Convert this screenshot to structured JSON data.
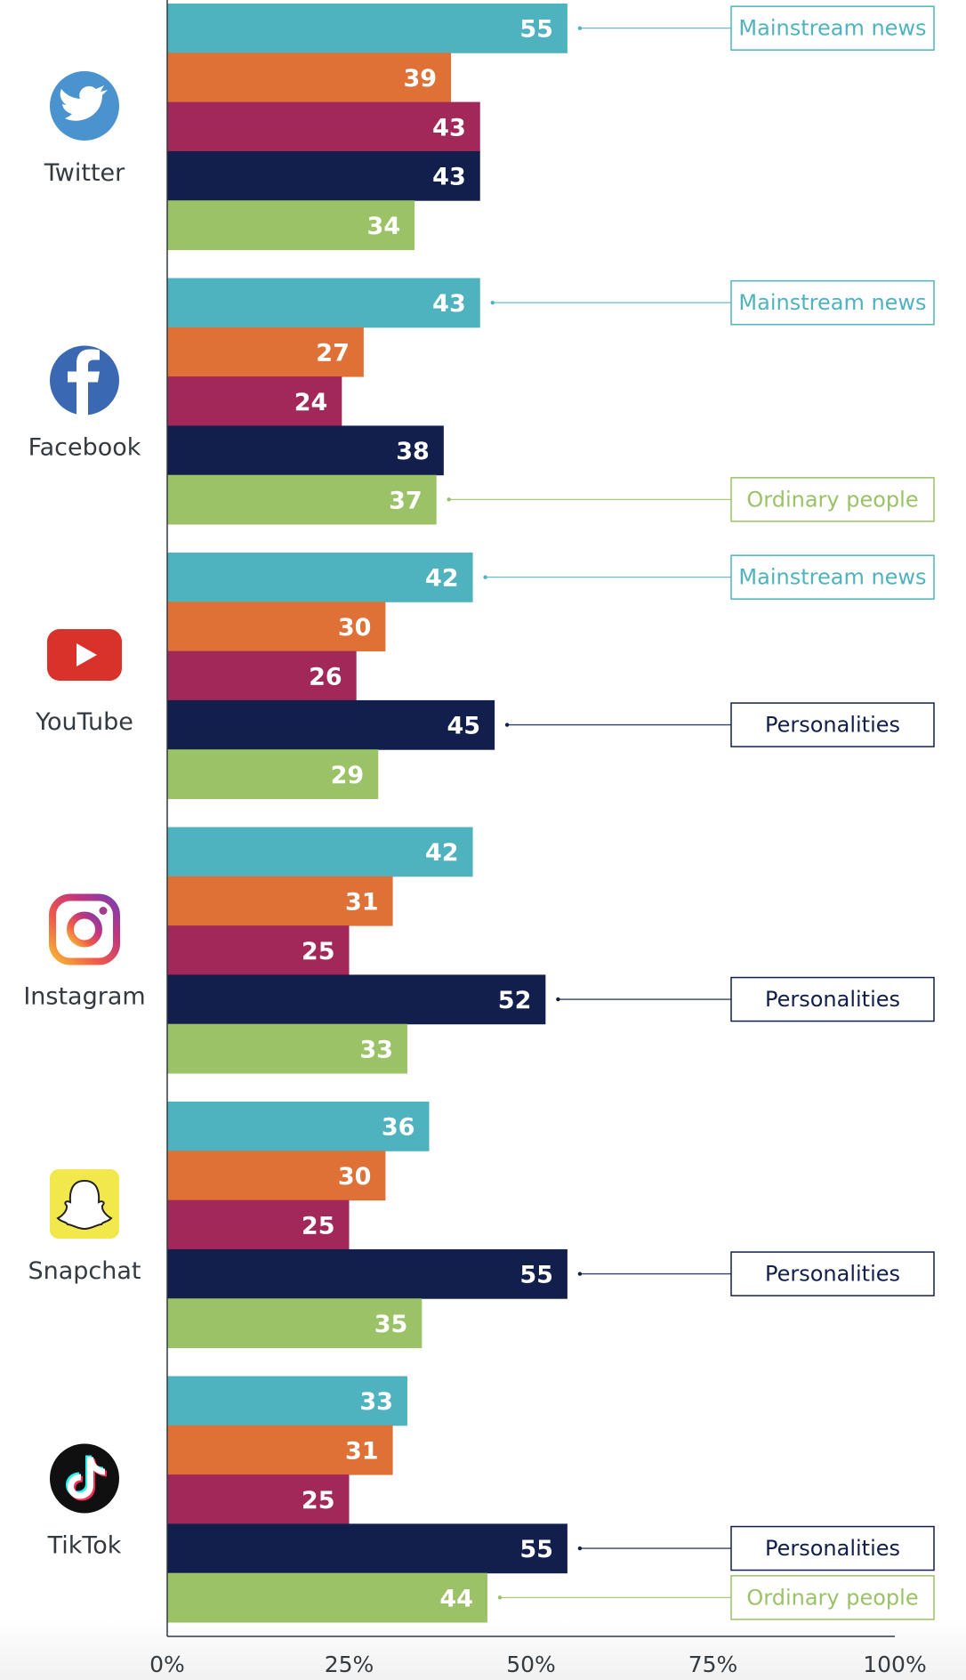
{
  "chart_data": {
    "type": "bar",
    "orientation": "horizontal",
    "xlim": [
      0,
      100
    ],
    "x_ticks": [
      "0%",
      "25%",
      "50%",
      "75%",
      "100%"
    ],
    "series_colors": [
      "#4fb3bf",
      "#e07136",
      "#a3285a",
      "#121f4d",
      "#9bc266"
    ],
    "groups": [
      {
        "platform": "Twitter",
        "icon": "twitter-icon",
        "values": [
          55,
          39,
          43,
          43,
          34
        ],
        "callouts": [
          {
            "bar": 0,
            "text": "Mainstream news",
            "color": "#4fb3bf"
          }
        ]
      },
      {
        "platform": "Facebook",
        "icon": "facebook-icon",
        "values": [
          43,
          27,
          24,
          38,
          37
        ],
        "callouts": [
          {
            "bar": 0,
            "text": "Mainstream news",
            "color": "#4fb3bf"
          },
          {
            "bar": 4,
            "text": "Ordinary people",
            "color": "#9bc266"
          }
        ]
      },
      {
        "platform": "YouTube",
        "icon": "youtube-icon",
        "values": [
          42,
          30,
          26,
          45,
          29
        ],
        "callouts": [
          {
            "bar": 0,
            "text": "Mainstream news",
            "color": "#4fb3bf"
          },
          {
            "bar": 3,
            "text": "Personalities",
            "color": "#121f4d"
          }
        ]
      },
      {
        "platform": "Instagram",
        "icon": "instagram-icon",
        "values": [
          42,
          31,
          25,
          52,
          33
        ],
        "callouts": [
          {
            "bar": 3,
            "text": "Personalities",
            "color": "#121f4d"
          }
        ]
      },
      {
        "platform": "Snapchat",
        "icon": "snapchat-icon",
        "values": [
          36,
          30,
          25,
          55,
          35
        ],
        "callouts": [
          {
            "bar": 3,
            "text": "Personalities",
            "color": "#121f4d"
          }
        ]
      },
      {
        "platform": "TikTok",
        "icon": "tiktok-icon",
        "values": [
          33,
          31,
          25,
          55,
          44
        ],
        "callouts": [
          {
            "bar": 3,
            "text": "Personalities",
            "color": "#121f4d"
          },
          {
            "bar": 4,
            "text": "Ordinary people",
            "color": "#9bc266"
          }
        ]
      }
    ]
  }
}
